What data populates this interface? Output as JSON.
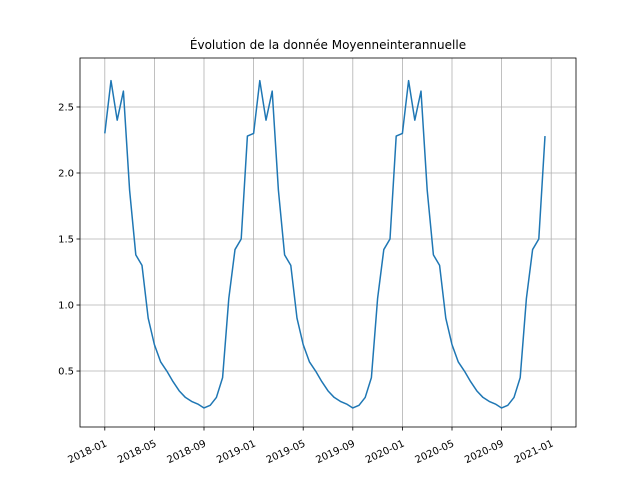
{
  "chart_data": {
    "type": "line",
    "title": "Évolution de la donnée Moyenneinterannuelle",
    "x": [
      "2018-01",
      "2018-01",
      "2018-02",
      "2018-02",
      "2018-03",
      "2018-03",
      "2018-04",
      "2018-04",
      "2018-05",
      "2018-05",
      "2018-06",
      "2018-06",
      "2018-07",
      "2018-07",
      "2018-08",
      "2018-08",
      "2018-09",
      "2018-09",
      "2018-10",
      "2018-10",
      "2018-11",
      "2018-11",
      "2018-12",
      "2018-12",
      "2019-01",
      "2019-01",
      "2019-02",
      "2019-02",
      "2019-03",
      "2019-03",
      "2019-04",
      "2019-04",
      "2019-05",
      "2019-05",
      "2019-06",
      "2019-06",
      "2019-07",
      "2019-07",
      "2019-08",
      "2019-08",
      "2019-09",
      "2019-09",
      "2019-10",
      "2019-10",
      "2019-11",
      "2019-11",
      "2019-12",
      "2019-12",
      "2020-01",
      "2020-01",
      "2020-02",
      "2020-02",
      "2020-03",
      "2020-03",
      "2020-04",
      "2020-04",
      "2020-05",
      "2020-05",
      "2020-06",
      "2020-06",
      "2020-07",
      "2020-07",
      "2020-08",
      "2020-08",
      "2020-09",
      "2020-09",
      "2020-10",
      "2020-10",
      "2020-11",
      "2020-11",
      "2020-12",
      "2020-12"
    ],
    "values": [
      2.3,
      2.7,
      2.4,
      2.62,
      1.87,
      1.38,
      1.3,
      0.9,
      0.7,
      0.57,
      0.5,
      0.42,
      0.35,
      0.3,
      0.27,
      0.25,
      0.22,
      0.24,
      0.3,
      0.45,
      1.05,
      1.42,
      1.5,
      2.28,
      2.3,
      2.7,
      2.4,
      2.62,
      1.87,
      1.38,
      1.3,
      0.9,
      0.7,
      0.57,
      0.5,
      0.42,
      0.35,
      0.3,
      0.27,
      0.25,
      0.22,
      0.24,
      0.3,
      0.45,
      1.05,
      1.42,
      1.5,
      2.28,
      2.3,
      2.7,
      2.4,
      2.62,
      1.87,
      1.38,
      1.3,
      0.9,
      0.7,
      0.57,
      0.5,
      0.42,
      0.35,
      0.3,
      0.27,
      0.25,
      0.22,
      0.24,
      0.3,
      0.45,
      1.05,
      1.42,
      1.5,
      2.28
    ],
    "color": "#1f77b4",
    "xlim": [
      "2017-11",
      "2021-03"
    ],
    "xticks": [
      "2018-01",
      "2018-05",
      "2018-09",
      "2019-01",
      "2019-05",
      "2019-09",
      "2020-01",
      "2020-05",
      "2020-09",
      "2021-01"
    ],
    "ylim": [
      0.076,
      2.871
    ],
    "yticks": [
      0.5,
      {
        "value": 1,
        "label": "1.0"
      },
      1.5,
      {
        "value": 2,
        "label": "2.0"
      },
      2.5
    ],
    "grid": true
  }
}
